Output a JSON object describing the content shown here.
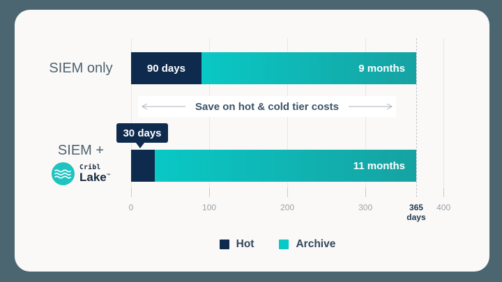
{
  "chart_data": {
    "type": "bar",
    "orientation": "horizontal",
    "categories": [
      "SIEM only",
      "SIEM + Cribl Lake"
    ],
    "series": [
      {
        "name": "Hot",
        "color": "#0E2A4D",
        "values": [
          90,
          30
        ],
        "value_labels": [
          "90 days",
          "30 days"
        ]
      },
      {
        "name": "Archive",
        "color": "#09C8C5",
        "values": [
          275,
          335
        ],
        "value_labels": [
          "9 months",
          "11 months"
        ]
      }
    ],
    "x_unit": "days",
    "x_ticks": [
      0,
      100,
      200,
      300,
      400
    ],
    "x_marker": {
      "value": 365,
      "label": "365",
      "sublabel": "days"
    },
    "xlim": [
      0,
      400
    ],
    "annotation": "Save on hot & cold tier costs",
    "grid": true,
    "legend_position": "bottom"
  },
  "labels": {
    "row1": "SIEM only",
    "row2": "SIEM +"
  },
  "logo": {
    "brand": "Cribl",
    "product": "Lake",
    "trademark": "™"
  },
  "axis": {
    "tick_labels": [
      "0",
      "100",
      "200",
      "300",
      "400"
    ]
  },
  "colors": {
    "background": "#4B6670",
    "card": "#FAF9F7",
    "hot": "#0E2A4D",
    "archive": "#09C8C5",
    "archive_gradient_end": "#16A2A2",
    "grid": "#E7E7E3",
    "marker_dash": "#BFC5CB",
    "text_primary": "#32465C",
    "text_muted": "#9AA2AD",
    "label_slate": "#4D6373",
    "logo_teal": "#1FC3BF"
  }
}
